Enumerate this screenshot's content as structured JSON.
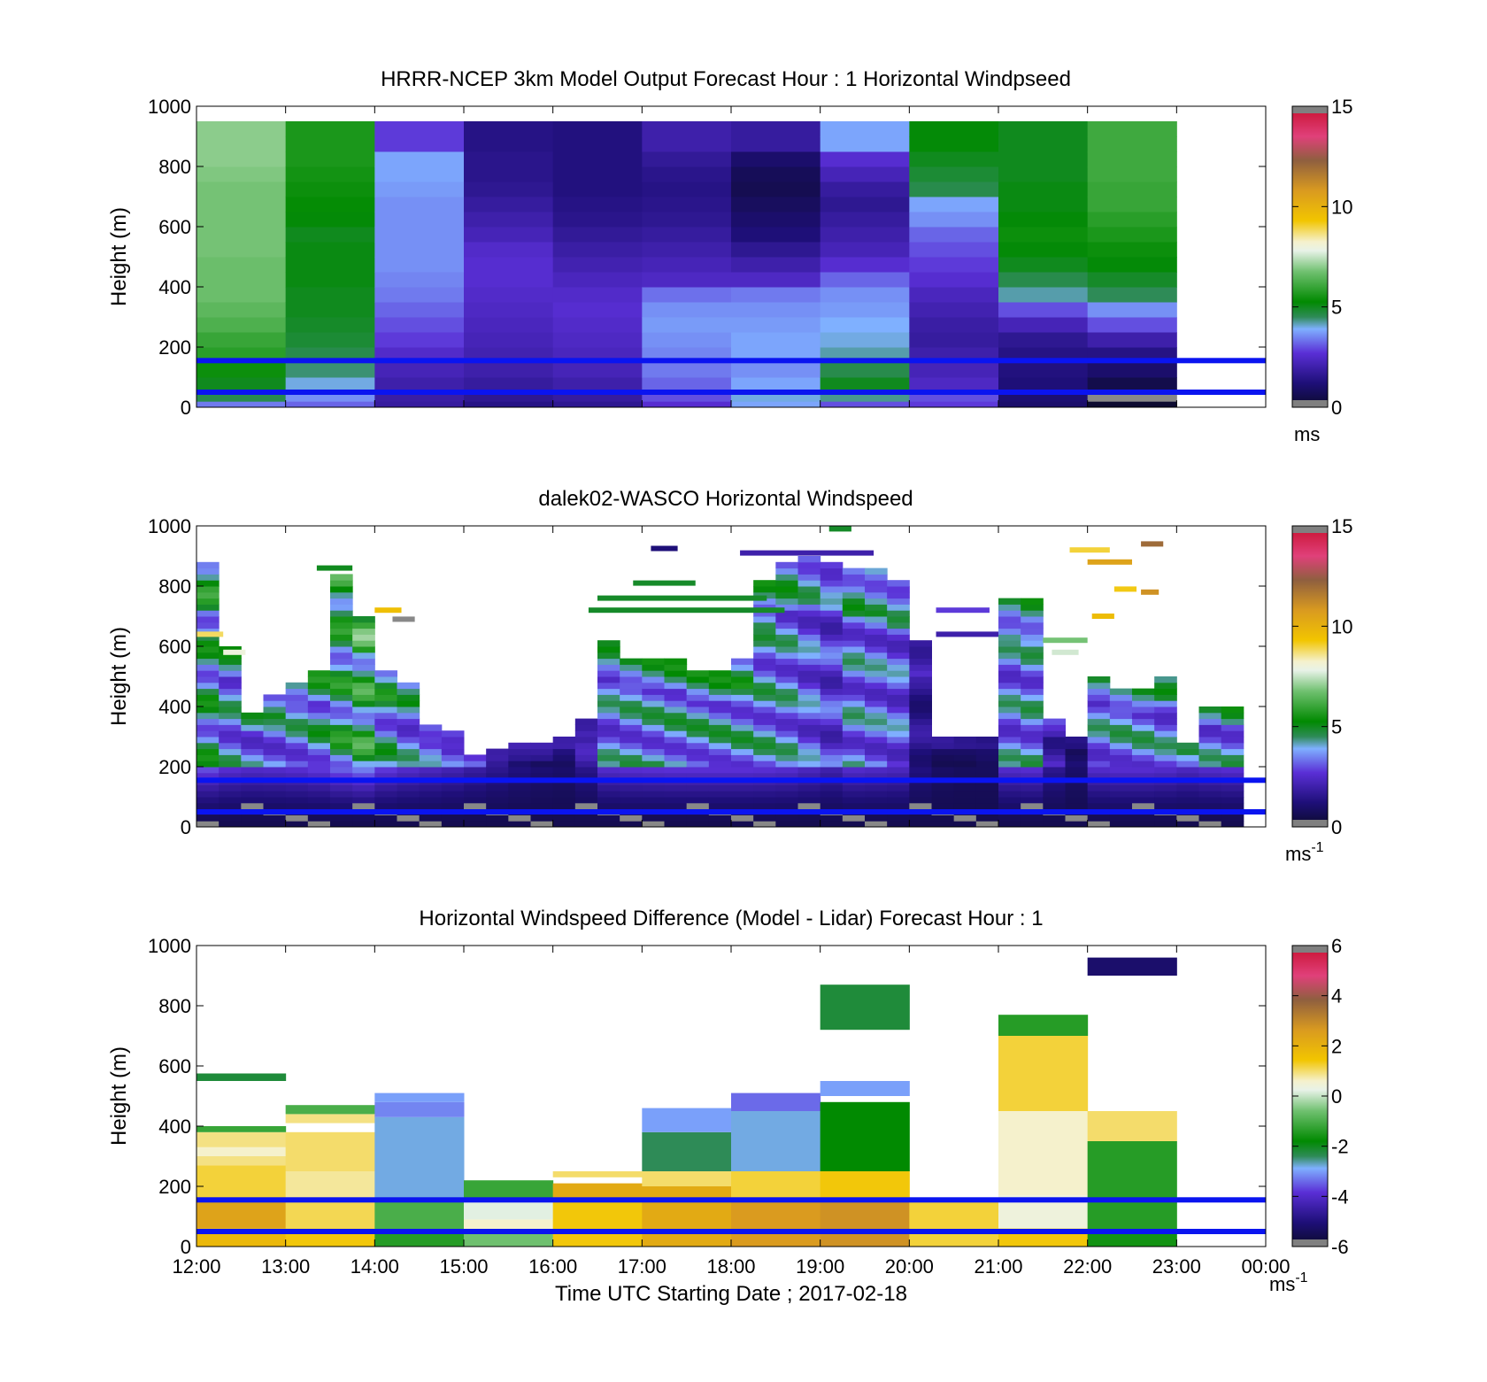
{
  "chart_data": [
    {
      "type": "heatmap",
      "title": "HRRR-NCEP 3km Model Output   Forecast Hour : 1 Horizontal Windpseed",
      "ylabel": "Height (m)",
      "xlabel": "",
      "ylim": [
        0,
        1000
      ],
      "yticks": [
        "0",
        "200",
        "400",
        "600",
        "800",
        "1000"
      ],
      "xticks_hours": [
        12,
        13,
        14,
        15,
        16,
        17,
        18,
        19,
        20,
        21,
        22,
        23,
        24
      ],
      "colorbar": {
        "min": 0,
        "max": 15,
        "ticks": [
          "0",
          "5",
          "10",
          "15"
        ],
        "unit": "ms"
      },
      "reference_lines_m": [
        50,
        155
      ],
      "heights_m": [
        20,
        60,
        100,
        150,
        200,
        250,
        300,
        350,
        400,
        450,
        500,
        550,
        600,
        650,
        700,
        750,
        800,
        850,
        900,
        950,
        1000
      ],
      "columns": [
        {
          "hour": 12,
          "values": [
            3.4,
            4.6,
            5.0,
            5.4,
            5.8,
            6.0,
            6.3,
            6.5,
            6.7,
            6.7,
            6.7,
            6.8,
            6.8,
            6.8,
            6.8,
            6.8,
            6.9,
            7.0,
            7.0,
            7.0
          ]
        },
        {
          "hour": 13,
          "values": [
            3.2,
            3.6,
            4.0,
            4.4,
            4.6,
            4.8,
            4.9,
            5.0,
            5.0,
            5.1,
            5.1,
            5.1,
            5.0,
            5.2,
            5.3,
            5.4,
            5.5,
            5.6,
            5.6,
            5.6
          ]
        },
        {
          "hour": 14,
          "values": [
            1.8,
            1.9,
            2.0,
            2.2,
            2.5,
            2.8,
            3.0,
            3.2,
            3.4,
            3.5,
            3.6,
            3.6,
            3.6,
            3.6,
            3.6,
            3.7,
            3.8,
            3.8,
            2.8,
            2.8
          ]
        },
        {
          "hour": 15,
          "values": [
            1.4,
            1.6,
            1.8,
            2.0,
            2.1,
            2.2,
            2.3,
            2.4,
            2.5,
            2.6,
            2.6,
            2.5,
            2.2,
            2.0,
            1.8,
            1.6,
            1.5,
            1.5,
            1.4,
            1.4
          ]
        },
        {
          "hour": 16,
          "values": [
            1.6,
            1.8,
            2.0,
            2.2,
            2.3,
            2.4,
            2.5,
            2.6,
            2.5,
            2.3,
            2.1,
            1.9,
            1.7,
            1.5,
            1.4,
            1.3,
            1.3,
            1.3,
            1.3,
            1.3
          ]
        },
        {
          "hour": 17,
          "values": [
            2.6,
            3.0,
            3.2,
            3.4,
            3.5,
            3.6,
            3.7,
            3.6,
            3.3,
            2.4,
            2.2,
            2.0,
            1.8,
            1.6,
            1.5,
            1.4,
            1.5,
            1.7,
            2.0,
            2.0
          ]
        },
        {
          "hour": 18,
          "values": [
            3.8,
            4.0,
            3.8,
            3.6,
            3.8,
            3.8,
            3.7,
            3.6,
            3.4,
            2.4,
            2.0,
            1.6,
            1.2,
            1.0,
            0.8,
            0.6,
            0.7,
            1.0,
            1.8,
            1.8
          ]
        },
        {
          "hour": 19,
          "values": [
            3.0,
            4.3,
            5.0,
            4.6,
            4.2,
            4.0,
            3.9,
            3.7,
            3.6,
            3.2,
            2.6,
            2.2,
            2.0,
            1.8,
            1.6,
            1.8,
            2.2,
            2.6,
            3.8,
            3.8
          ]
        },
        {
          "hour": 20,
          "values": [
            2.8,
            3.0,
            2.4,
            2.2,
            2.0,
            1.8,
            1.9,
            2.1,
            2.3,
            2.6,
            2.8,
            3.0,
            3.2,
            3.6,
            3.8,
            4.6,
            4.8,
            5.0,
            5.2,
            5.2
          ]
        },
        {
          "hour": 21,
          "values": [
            1.0,
            1.1,
            1.2,
            1.3,
            1.4,
            1.6,
            2.2,
            3.0,
            4.2,
            4.6,
            5.0,
            5.2,
            5.4,
            5.2,
            5.1,
            5.1,
            5.0,
            5.0,
            5.0,
            5.0
          ]
        },
        {
          "hour": 22,
          "values": [
            0.1,
            -1,
            0.5,
            1.0,
            1.4,
            2.0,
            3.0,
            3.6,
            4.5,
            4.9,
            5.2,
            5.4,
            5.6,
            5.8,
            6.0,
            6.0,
            6.1,
            6.1,
            6.1,
            6.1
          ]
        }
      ]
    },
    {
      "type": "heatmap",
      "title": "dalek02-WASCO  Horizontal Windspeed",
      "ylabel": "Height (m)",
      "xlabel": "",
      "ylim": [
        0,
        1000
      ],
      "yticks": [
        "0",
        "200",
        "400",
        "600",
        "800",
        "1000"
      ],
      "xticks_hours": [
        12,
        13,
        14,
        15,
        16,
        17,
        18,
        19,
        20,
        21,
        22,
        23,
        24
      ],
      "colorbar": {
        "min": 0,
        "max": 15,
        "ticks": [
          "0",
          "5",
          "10",
          "15"
        ],
        "unit": "ms",
        "unit_exp": "-1"
      },
      "reference_lines_m": [
        50,
        155
      ],
      "step_hours": 0.25,
      "profiles": [
        {
          "t": 12.0,
          "top": 880,
          "base": 5.6
        },
        {
          "t": 12.25,
          "top": 600,
          "base": 4.8
        },
        {
          "t": 12.5,
          "top": 380,
          "base": 4.5
        },
        {
          "t": 12.75,
          "top": 440,
          "base": 4.6
        },
        {
          "t": 13.0,
          "top": 480,
          "base": 4.8
        },
        {
          "t": 13.25,
          "top": 520,
          "base": 5.2
        },
        {
          "t": 13.5,
          "top": 840,
          "base": 6.0
        },
        {
          "t": 13.75,
          "top": 700,
          "base": 6.6
        },
        {
          "t": 14.0,
          "top": 520,
          "base": 5.2
        },
        {
          "t": 14.25,
          "top": 480,
          "base": 4.6
        },
        {
          "t": 14.5,
          "top": 340,
          "base": 4.2
        },
        {
          "t": 14.75,
          "top": 320,
          "base": 3.8
        },
        {
          "t": 15.0,
          "top": 240,
          "base": 3.2
        },
        {
          "t": 15.25,
          "top": 260,
          "base": 2.6
        },
        {
          "t": 15.5,
          "top": 270,
          "base": 2.0
        },
        {
          "t": 15.75,
          "top": 270,
          "base": 1.6
        },
        {
          "t": 16.0,
          "top": 300,
          "base": 1.4
        },
        {
          "t": 16.25,
          "top": 350,
          "base": 2.4
        },
        {
          "t": 16.5,
          "top": 620,
          "base": 4.6
        },
        {
          "t": 16.75,
          "top": 560,
          "base": 4.8
        },
        {
          "t": 17.0,
          "top": 560,
          "base": 4.9
        },
        {
          "t": 17.25,
          "top": 560,
          "base": 5.0
        },
        {
          "t": 17.5,
          "top": 520,
          "base": 5.0
        },
        {
          "t": 17.75,
          "top": 520,
          "base": 5.0
        },
        {
          "t": 18.0,
          "top": 560,
          "base": 5.0
        },
        {
          "t": 18.25,
          "top": 820,
          "base": 4.9
        },
        {
          "t": 18.5,
          "top": 880,
          "base": 4.7
        },
        {
          "t": 18.75,
          "top": 900,
          "base": 4.2
        },
        {
          "t": 19.0,
          "top": 880,
          "base": 3.6
        },
        {
          "t": 19.25,
          "top": 860,
          "base": 4.6
        },
        {
          "t": 19.5,
          "top": 860,
          "base": 4.4
        },
        {
          "t": 19.75,
          "top": 820,
          "base": 4.2
        },
        {
          "t": 20.0,
          "top": 620,
          "base": 2.0
        },
        {
          "t": 20.25,
          "top": 300,
          "base": 1.2
        },
        {
          "t": 20.5,
          "top": 300,
          "base": 1.0
        },
        {
          "t": 20.75,
          "top": 300,
          "base": 1.0
        },
        {
          "t": 21.0,
          "top": 760,
          "base": 4.6
        },
        {
          "t": 21.25,
          "top": 760,
          "base": 4.8
        },
        {
          "t": 21.5,
          "top": 360,
          "base": 2.6
        },
        {
          "t": 21.75,
          "top": 300,
          "base": 1.4
        },
        {
          "t": 22.0,
          "top": 500,
          "base": 4.6
        },
        {
          "t": 22.25,
          "top": 460,
          "base": 4.8
        },
        {
          "t": 22.5,
          "top": 460,
          "base": 4.8
        },
        {
          "t": 22.75,
          "top": 500,
          "base": 4.6
        },
        {
          "t": 23.0,
          "top": 280,
          "base": 4.2
        },
        {
          "t": 23.25,
          "top": 400,
          "base": 4.6
        },
        {
          "t": 23.5,
          "top": 400,
          "base": 4.8
        }
      ],
      "sparse_segments": [
        {
          "t0": 13.35,
          "t1": 13.75,
          "h": 860,
          "v": 5.0
        },
        {
          "t0": 14.0,
          "t1": 14.3,
          "h": 720,
          "v": 9.5
        },
        {
          "t0": 14.2,
          "t1": 14.45,
          "h": 690,
          "v": -1
        },
        {
          "t0": 12.0,
          "t1": 12.3,
          "h": 640,
          "v": 8.8
        },
        {
          "t0": 12.3,
          "t1": 12.55,
          "h": 580,
          "v": 8.0
        },
        {
          "t0": 16.4,
          "t1": 18.6,
          "h": 720,
          "v": 4.9
        },
        {
          "t0": 16.5,
          "t1": 18.4,
          "h": 760,
          "v": 4.9
        },
        {
          "t0": 16.9,
          "t1": 17.6,
          "h": 810,
          "v": 4.9
        },
        {
          "t0": 18.1,
          "t1": 19.6,
          "h": 910,
          "v": 2.0
        },
        {
          "t0": 17.1,
          "t1": 17.4,
          "h": 925,
          "v": 1.2
        },
        {
          "t0": 19.1,
          "t1": 19.35,
          "h": 990,
          "v": 4.9
        },
        {
          "t0": 20.3,
          "t1": 20.9,
          "h": 720,
          "v": 2.8
        },
        {
          "t0": 20.3,
          "t1": 21.0,
          "h": 640,
          "v": 2.0
        },
        {
          "t0": 21.8,
          "t1": 22.25,
          "h": 920,
          "v": 9.0
        },
        {
          "t0": 22.0,
          "t1": 22.5,
          "h": 880,
          "v": 10.5
        },
        {
          "t0": 22.3,
          "t1": 22.55,
          "h": 790,
          "v": 9.2
        },
        {
          "t0": 22.05,
          "t1": 22.3,
          "h": 700,
          "v": 9.6
        },
        {
          "t0": 22.6,
          "t1": 22.8,
          "h": 780,
          "v": 11.0
        },
        {
          "t0": 22.6,
          "t1": 22.85,
          "h": 940,
          "v": 12.0
        },
        {
          "t0": 21.5,
          "t1": 22.0,
          "h": 620,
          "v": 6.8
        },
        {
          "t0": 21.6,
          "t1": 21.9,
          "h": 580,
          "v": 7.6
        }
      ]
    },
    {
      "type": "heatmap",
      "title": "Horizontal Windspeed Difference (Model - Lidar) Forecast Hour : 1",
      "ylabel": "Height (m)",
      "xlabel": "Time UTC  Starting Date ; 2017-02-18",
      "ylim": [
        0,
        1000
      ],
      "yticks": [
        "0",
        "200",
        "400",
        "600",
        "800",
        "1000"
      ],
      "xticks": [
        "12:00",
        "13:00",
        "14:00",
        "15:00",
        "16:00",
        "17:00",
        "18:00",
        "19:00",
        "20:00",
        "21:00",
        "22:00",
        "23:00",
        "00:00"
      ],
      "xticks_hours": [
        12,
        13,
        14,
        15,
        16,
        17,
        18,
        19,
        20,
        21,
        22,
        23,
        24
      ],
      "colorbar": {
        "min": -6,
        "max": 6,
        "ticks": [
          "-6",
          "-4",
          "-2",
          "0",
          "2",
          "4",
          "6"
        ],
        "unit": "ms",
        "unit_exp": "-1"
      },
      "reference_lines_m": [
        50,
        155
      ],
      "columns": [
        {
          "hour": 12,
          "segments": [
            [
              0,
              60,
              1.8
            ],
            [
              60,
              150,
              2.4
            ],
            [
              150,
              270,
              1.2
            ],
            [
              270,
              300,
              0.9
            ],
            [
              300,
              330,
              0.6
            ],
            [
              330,
              380,
              0.9
            ],
            [
              380,
              400,
              -1.2
            ],
            [
              550,
              575,
              -2.2
            ]
          ]
        },
        {
          "hour": 13,
          "segments": [
            [
              0,
              60,
              1.4
            ],
            [
              60,
              160,
              1.1
            ],
            [
              160,
              250,
              0.8
            ],
            [
              250,
              380,
              1.0
            ],
            [
              410,
              440,
              0.9
            ],
            [
              440,
              470,
              -1.0
            ]
          ]
        },
        {
          "hour": 14,
          "segments": [
            [
              0,
              50,
              -1.4
            ],
            [
              50,
              150,
              -1.0
            ],
            [
              150,
              430,
              -2.8
            ],
            [
              430,
              480,
              -3.2
            ],
            [
              480,
              510,
              -3.0
            ]
          ]
        },
        {
          "hour": 15,
          "segments": [
            [
              0,
              50,
              -0.6
            ],
            [
              50,
              90,
              0.6
            ],
            [
              90,
              150,
              0.2
            ],
            [
              150,
              220,
              -1.2
            ]
          ]
        },
        {
          "hour": 16,
          "segments": [
            [
              0,
              150,
              1.4
            ],
            [
              150,
              210,
              2.2
            ],
            [
              230,
              250,
              1.0
            ]
          ]
        },
        {
          "hour": 17,
          "segments": [
            [
              0,
              200,
              2.2
            ],
            [
              200,
              250,
              1.0
            ],
            [
              250,
              380,
              -2.4
            ],
            [
              380,
              460,
              -3.0
            ]
          ]
        },
        {
          "hour": 18,
          "segments": [
            [
              0,
              150,
              2.6
            ],
            [
              150,
              250,
              1.2
            ],
            [
              250,
              450,
              -2.8
            ],
            [
              450,
              510,
              -3.4
            ]
          ]
        },
        {
          "hour": 19,
          "segments": [
            [
              0,
              160,
              2.8
            ],
            [
              160,
              250,
              1.4
            ],
            [
              250,
              480,
              -1.8
            ],
            [
              500,
              550,
              -3.0
            ],
            [
              720,
              870,
              -2.2
            ]
          ]
        },
        {
          "hour": 20,
          "segments": [
            [
              0,
              150,
              1.2
            ]
          ]
        },
        {
          "hour": 21,
          "segments": [
            [
              0,
              60,
              1.4
            ],
            [
              60,
              170,
              0.4
            ],
            [
              170,
              450,
              0.6
            ],
            [
              450,
              700,
              1.2
            ],
            [
              700,
              770,
              -1.4
            ]
          ]
        },
        {
          "hour": 22,
          "segments": [
            [
              0,
              50,
              -1.6
            ],
            [
              50,
              350,
              -1.4
            ],
            [
              350,
              450,
              1.0
            ],
            [
              900,
              960,
              -5.2
            ]
          ]
        }
      ]
    }
  ]
}
